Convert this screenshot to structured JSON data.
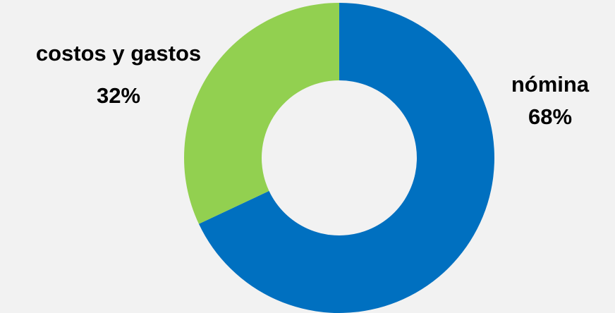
{
  "chart_data": {
    "type": "donut",
    "title": "",
    "slices": [
      {
        "label": "nómina",
        "value": 68,
        "value_label": "68%",
        "color": "#0070c0"
      },
      {
        "label": "costos y gastos",
        "value": 32,
        "value_label": "32%",
        "color": "#92d050"
      }
    ],
    "start": "12 o'clock, clockwise",
    "legend": "none"
  },
  "background": "#f2f2f2"
}
